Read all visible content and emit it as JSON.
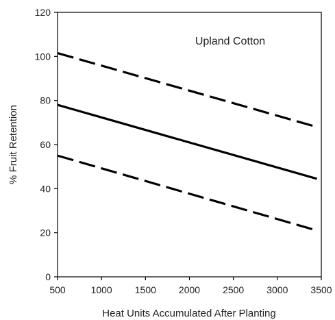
{
  "chart_data": {
    "type": "line",
    "title": "",
    "annotation": "Upland Cotton",
    "xlabel": "Heat Units Accumulated After Planting",
    "ylabel": "% Fruit Retention",
    "xlim": [
      500,
      3500
    ],
    "ylim": [
      0,
      120
    ],
    "xticks": [
      500,
      1000,
      1500,
      2000,
      2500,
      3000,
      3500
    ],
    "yticks": [
      0,
      20,
      40,
      60,
      80,
      100,
      120
    ],
    "grid": false,
    "legend": "none",
    "line_color": "#000000",
    "series": [
      {
        "style": "dashed",
        "x": [
          500,
          3450
        ],
        "y": [
          101.5,
          68
        ]
      },
      {
        "style": "solid",
        "x": [
          500,
          3450
        ],
        "y": [
          78,
          44.5
        ]
      },
      {
        "style": "dashed",
        "x": [
          500,
          3450
        ],
        "y": [
          55,
          21
        ]
      }
    ]
  }
}
